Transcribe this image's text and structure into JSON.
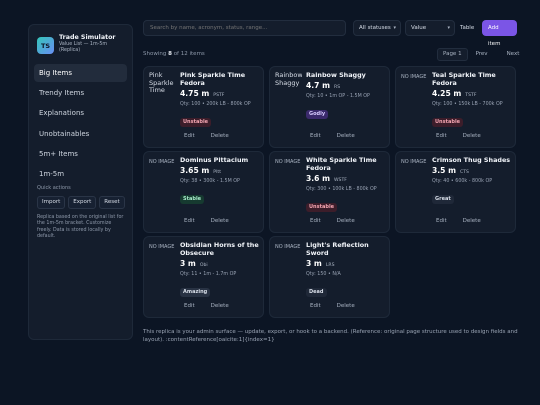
{
  "app": {
    "logo_text": "TS",
    "title": "Trade Simulator",
    "subtitle_line1": "Value List — 1m-5m",
    "subtitle_line2": "(Replica)"
  },
  "sidebar": {
    "items": [
      {
        "label": "Big Items",
        "active": true
      },
      {
        "label": "Trendy Items",
        "active": false
      },
      {
        "label": "Explanations",
        "active": false
      },
      {
        "label": "Unobtainables",
        "active": false
      },
      {
        "label": "5m+ Items",
        "active": false
      },
      {
        "label": "1m-5m",
        "active": false
      }
    ],
    "quick_actions_title": "Quick actions",
    "quick_actions": [
      "Import",
      "Export",
      "Reset"
    ],
    "note": "Replica based on the original list for the 1m-5m bracket. Customize freely. Data is stored locally by default."
  },
  "toolbar": {
    "search_placeholder": "Search by name, acronym, status, range...",
    "status_select": "All statuses",
    "sort_select": "Value",
    "view_button": "Table",
    "add_button": "Add item"
  },
  "listing": {
    "showing_prefix": "Showing",
    "shown_count": "8",
    "of_label": "of",
    "total_count": "12",
    "items_label": "items",
    "page_label": "Page 1",
    "prev_label": "Prev",
    "next_label": "Next"
  },
  "cards": [
    {
      "thumb": "Pink Sparkle Time",
      "thumb_kind": "pic",
      "name": "Pink Sparkle Time Fedora",
      "value": "4.75 m",
      "abbr": "PSTF",
      "qty": "Qty: 100 • 200k LB - 800k OP",
      "badge": "Unstable",
      "badge_kind": "unstable",
      "edit": "Edit",
      "delete": "Delete"
    },
    {
      "thumb": "Rainbow Shaggy",
      "thumb_kind": "pic",
      "name": "Rainbow Shaggy",
      "value": "4.7 m",
      "abbr": "RS",
      "qty": "Qty: 10 • 1m OP - 1.5M OP",
      "badge": "Godly",
      "badge_kind": "godly",
      "edit": "Edit",
      "delete": "Delete"
    },
    {
      "thumb": "NO IMAGE",
      "thumb_kind": "noimg",
      "name": "Teal Sparkle Time Fedora",
      "value": "4.25 m",
      "abbr": "TSTF",
      "qty": "Qty: 100 • 150k LB - 700k OP",
      "badge": "Unstable",
      "badge_kind": "unstable",
      "edit": "Edit",
      "delete": "Delete"
    },
    {
      "thumb": "NO IMAGE",
      "thumb_kind": "noimg",
      "name": "Dominus Pittacium",
      "value": "3.65 m",
      "abbr": "PItt",
      "qty": "Qty: 38 • 300k - 1.5M OP",
      "badge": "Stable",
      "badge_kind": "stable",
      "edit": "Edit",
      "delete": "Delete"
    },
    {
      "thumb": "NO IMAGE",
      "thumb_kind": "noimg",
      "name": "White Sparkle Time Fedora",
      "value": "3.6 m",
      "abbr": "WSTF",
      "qty": "Qty: 300 • 100k LB - 800k OP",
      "badge": "Unstable",
      "badge_kind": "unstable",
      "edit": "Edit",
      "delete": "Delete"
    },
    {
      "thumb": "NO IMAGE",
      "thumb_kind": "noimg",
      "name": "Crimson Thug Shades",
      "value": "3.5 m",
      "abbr": "CTS",
      "qty": "Qty: 40 • 600k - 800k OP",
      "badge": "Great",
      "badge_kind": "great",
      "edit": "Edit",
      "delete": "Delete"
    },
    {
      "thumb": "NO IMAGE",
      "thumb_kind": "noimg",
      "name": "Obsidian Horns of the Obsecure",
      "value": "3 m",
      "abbr": "Obi",
      "qty": "Qty: 11 • 1m - 1.7m OP",
      "badge": "Amazing",
      "badge_kind": "amazing",
      "edit": "Edit",
      "delete": "Delete"
    },
    {
      "thumb": "NO IMAGE",
      "thumb_kind": "noimg",
      "name": "Light's Reflection Sword",
      "value": "3 m",
      "abbr": "LRS",
      "qty": "Qty: 150 • N/A",
      "badge": "Dead",
      "badge_kind": "dead",
      "edit": "Edit",
      "delete": "Delete"
    }
  ],
  "footer": "This replica is your admin surface — update, export, or hook to a backend. (Reference: original page structure used to design fields and layout). :contentReference[oaicite:1]{index=1}",
  "colors": {
    "background": "#0c1524",
    "panel": "#141d2c",
    "accent": "#7b55e6",
    "unstable": "#f4a5b1",
    "godly": "#d9ccff",
    "stable": "#a5ecc8"
  }
}
